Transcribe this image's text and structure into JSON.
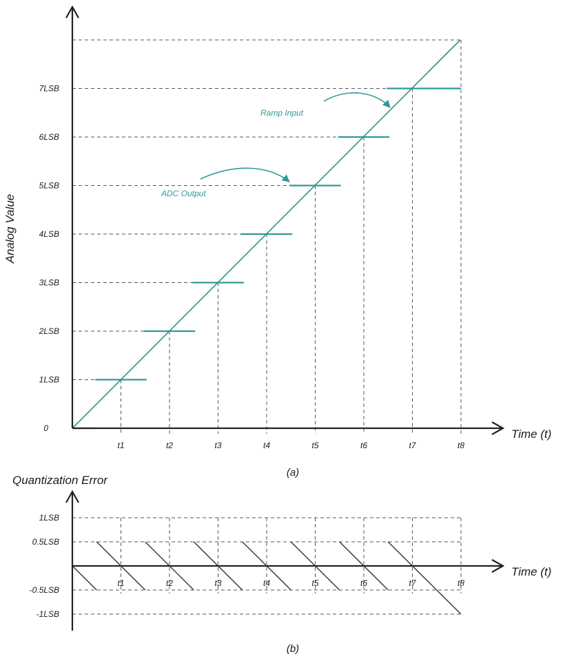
{
  "panel_a": {
    "y_axis_title": "Analog Value",
    "x_axis_title": "Time (t)",
    "caption": "(a)",
    "y_ticks": [
      "0",
      "1LSB",
      "2LSB",
      "3LSB",
      "4LSB",
      "5LSB",
      "6LSB",
      "7LSB"
    ],
    "x_ticks": [
      "t1",
      "t2",
      "t3",
      "t4",
      "t5",
      "t6",
      "t7",
      "t8"
    ],
    "annotations": {
      "ramp_input": "Ramp Input",
      "adc_output": "ADC Output"
    },
    "colors": {
      "accent": "#2f9a96",
      "axis": "#222222"
    }
  },
  "panel_b": {
    "title": "Quantization Error",
    "x_axis_title": "Time (t)",
    "caption": "(b)",
    "y_ticks": [
      "1LSB",
      "0.5LSB",
      "-0.5LSB",
      "-1LSB"
    ],
    "x_ticks": [
      "t1",
      "t2",
      "t3",
      "t4",
      "t5",
      "t6",
      "t7",
      "t8"
    ]
  }
}
